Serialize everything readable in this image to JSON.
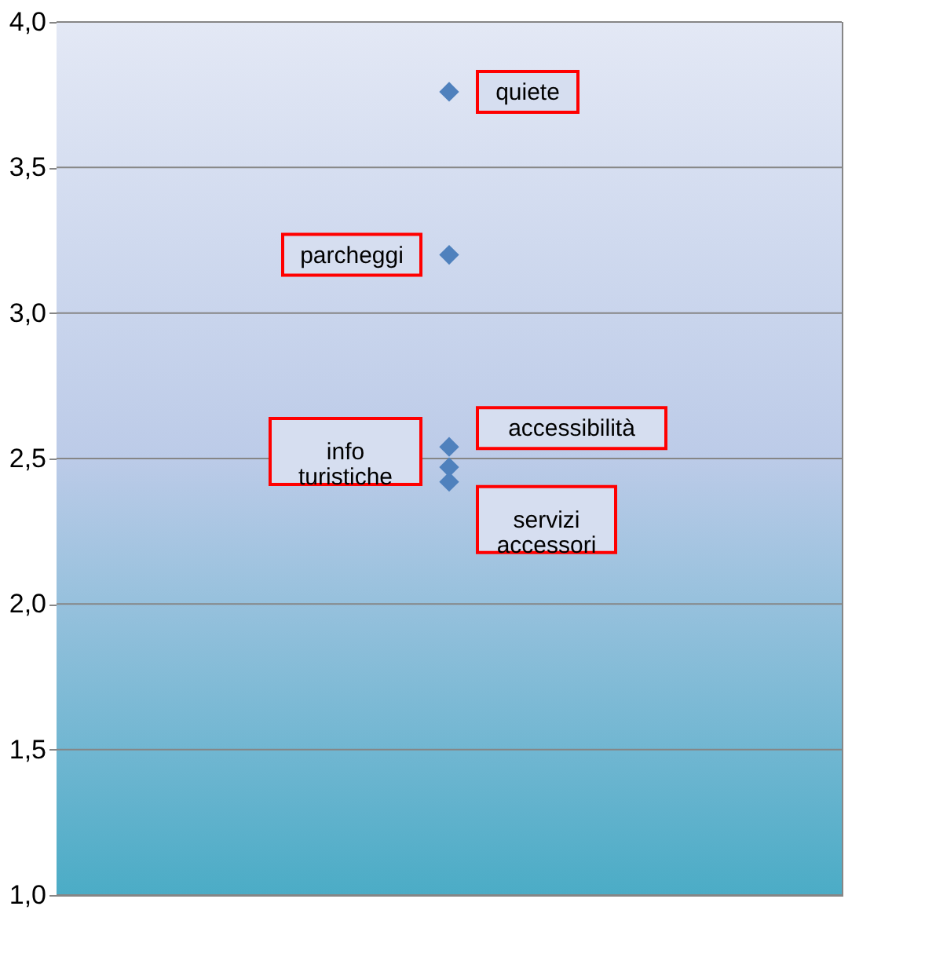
{
  "chart_data": {
    "type": "scatter",
    "categories": [
      null
    ],
    "series": [
      {
        "name": "quiete",
        "color": "#4f81bd",
        "values": [
          3.76
        ]
      },
      {
        "name": "parcheggi",
        "color": "#4f81bd",
        "values": [
          3.2
        ]
      },
      {
        "name": "accessibilità",
        "color": "#4f81bd",
        "values": [
          2.54
        ]
      },
      {
        "name": "info turistiche",
        "color": "#4f81bd",
        "values": [
          2.47
        ]
      },
      {
        "name": "servizi accessori",
        "color": "#4f81bd",
        "values": [
          2.42
        ]
      }
    ],
    "ylim": [
      1.0,
      4.0
    ],
    "yticks": [
      {
        "value": 1.0,
        "label": "1,0"
      },
      {
        "value": 1.5,
        "label": "1,5"
      },
      {
        "value": 2.0,
        "label": "2,0"
      },
      {
        "value": 2.5,
        "label": "2,5"
      },
      {
        "value": 3.0,
        "label": "3,0"
      },
      {
        "value": 3.5,
        "label": "3,5"
      },
      {
        "value": 4.0,
        "label": "4,0"
      }
    ],
    "grid": "y",
    "marker": "diamond"
  }
}
